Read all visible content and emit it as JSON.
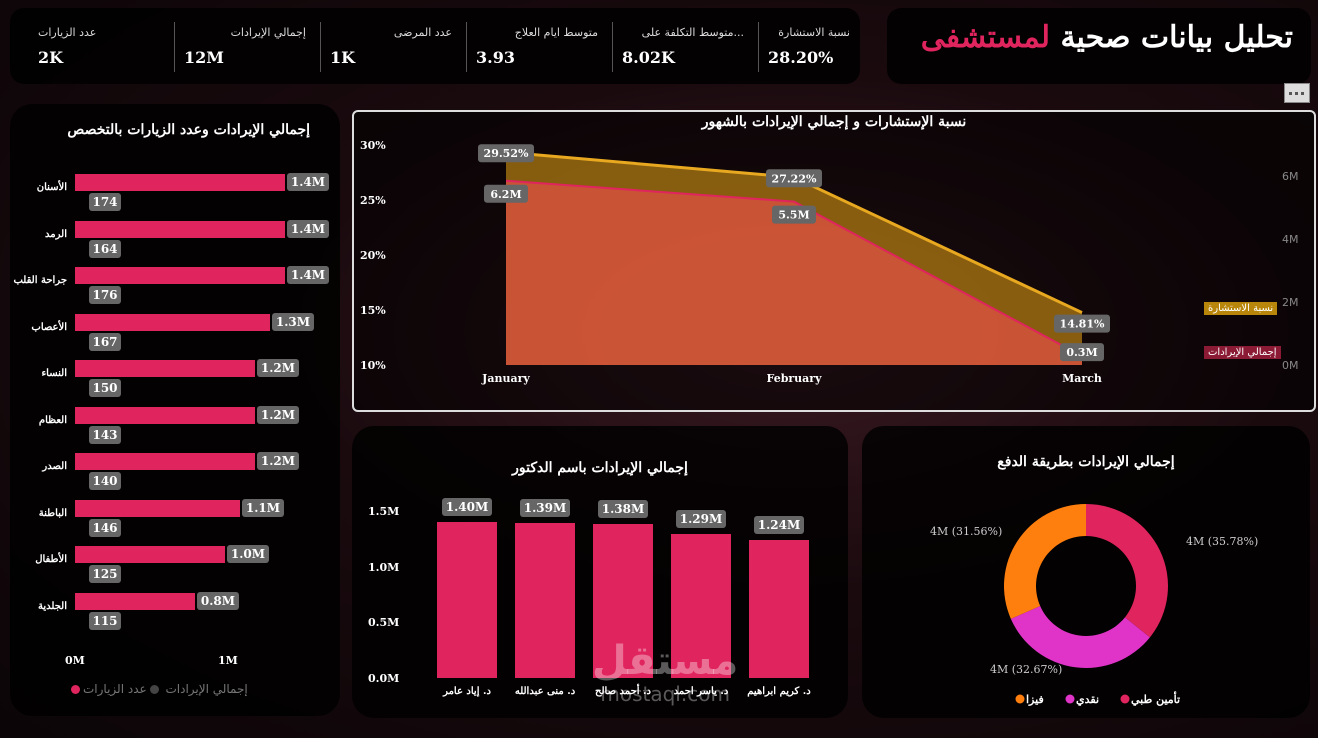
{
  "dashboard": {
    "title_main": "تحليل بيانات صحية",
    "title_highlight": "لمستشفى",
    "accent": "#e0245e"
  },
  "kpis": [
    {
      "label": "عدد الزيارات",
      "value": "2K"
    },
    {
      "label": "إجمالي الإيرادات",
      "value": "12M"
    },
    {
      "label": "عدد المرضى",
      "value": "1K"
    },
    {
      "label": "متوسط ايام العلاج",
      "value": "3.93"
    },
    {
      "label": "متوسط التكلفة على...",
      "value": "8.02K"
    },
    {
      "label": "نسبة الاستشارة",
      "value": "28.20%"
    }
  ],
  "specialty": {
    "title": "إجمالي الإيرادات وعدد الزيارات بالتخصص",
    "x_ticks": [
      "0M",
      "1M"
    ],
    "legend": [
      {
        "name": "عدد الزيارات",
        "color": "#444444"
      },
      {
        "name": "إجمالي الإيرادات",
        "color": "#e0245e"
      }
    ]
  },
  "monthly": {
    "title": "نسبة الإستشارات و إجمالي الإيرادات بالشهور",
    "left_ticks": [
      "30%",
      "25%",
      "20%",
      "15%",
      "10%"
    ],
    "right_ticks": [
      "6M",
      "4M",
      "2M",
      "0M"
    ],
    "legend": [
      {
        "name": "نسبة الاستشارة",
        "color": "#b8860b"
      },
      {
        "name": "إجمالي الإيرادات",
        "color": "#8b1a35"
      }
    ]
  },
  "doctor": {
    "title": "إجمالي الإيرادات باسم الدكتور",
    "y_ticks": [
      "1.5M",
      "1.0M",
      "0.5M",
      "0.0M"
    ]
  },
  "payment": {
    "title": "إجمالي الإيرادات بطريقة الدفع"
  },
  "watermark": {
    "arabic": "مستقل",
    "latin": "mostaql.com"
  },
  "chart_data": [
    {
      "type": "bar",
      "title": "إجمالي الإيرادات وعدد الزيارات بالتخصص",
      "categories": [
        "الأسنان",
        "الرمد",
        "جراحة القلب",
        "الأعصاب",
        "النساء",
        "العظام",
        "الصدر",
        "الباطنة",
        "الأطفال",
        "الجلدية"
      ],
      "series": [
        {
          "name": "إجمالي الإيرادات",
          "values": [
            1.4,
            1.4,
            1.4,
            1.3,
            1.2,
            1.2,
            1.2,
            1.1,
            1.0,
            0.8
          ],
          "labels": [
            "1.4M",
            "1.4M",
            "1.4M",
            "1.3M",
            "1.2M",
            "1.2M",
            "1.2M",
            "1.1M",
            "1.0M",
            "0.8M"
          ]
        },
        {
          "name": "عدد الزيارات",
          "values": [
            174,
            164,
            176,
            167,
            150,
            143,
            140,
            146,
            125,
            115
          ],
          "labels": [
            "174",
            "164",
            "176",
            "167",
            "150",
            "143",
            "140",
            "146",
            "125",
            "115"
          ]
        }
      ],
      "xlim": [
        0,
        1.6
      ]
    },
    {
      "type": "area",
      "title": "نسبة الإستشارات و إجمالي الإيرادات بالشهور",
      "categories": [
        "January",
        "February",
        "March"
      ],
      "series": [
        {
          "name": "نسبة الاستشارة",
          "values": [
            29.52,
            27.22,
            14.81
          ],
          "labels": [
            "29.52%",
            "27.22%",
            "14.81%"
          ],
          "color": "#e8a820"
        },
        {
          "name": "إجمالي الإيرادات",
          "values": [
            6.2,
            5.5,
            0.3
          ],
          "labels": [
            "6.2M",
            "5.5M",
            "0.3M"
          ],
          "color": "#e0245e"
        }
      ],
      "ylim_left": [
        10,
        30
      ],
      "ylim_right": [
        0,
        7
      ]
    },
    {
      "type": "bar",
      "title": "إجمالي الإيرادات باسم الدكتور",
      "categories": [
        "د. إياد عامر",
        "د. منى عبدالله",
        "د. أحمد صالح",
        "د. ياسر احمد",
        "د. كريم ابراهيم"
      ],
      "values": [
        1.4,
        1.39,
        1.38,
        1.29,
        1.24
      ],
      "labels": [
        "1.40M",
        "1.39M",
        "1.38M",
        "1.29M",
        "1.24M"
      ],
      "ylim": [
        0,
        1.6
      ]
    },
    {
      "type": "pie",
      "title": "إجمالي الإيرادات بطريقة الدفع",
      "slices": [
        {
          "name": "فيزا",
          "value": 35.78,
          "label": "4M (35.78%)",
          "color": "#e0245e"
        },
        {
          "name": "نقدي",
          "value": 32.67,
          "label": "4M (32.67%)",
          "color": "#e034c8"
        },
        {
          "name": "تأمين طبي",
          "value": 31.56,
          "label": "4M (31.56%)",
          "color": "#ff7f0e"
        }
      ]
    }
  ]
}
